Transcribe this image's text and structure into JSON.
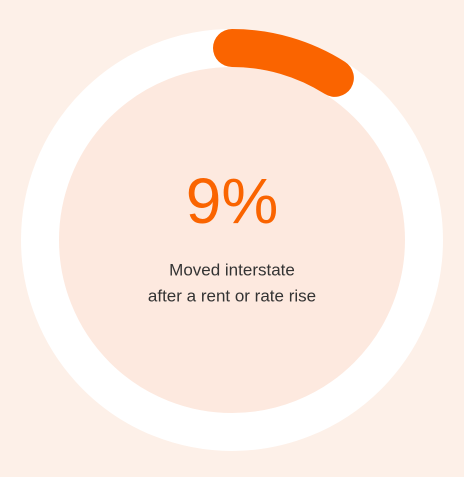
{
  "chart_data": {
    "type": "donut",
    "value": 9,
    "value_label": "9%",
    "max": 100,
    "color": "#fa6400",
    "caption": [
      "Moved interstate",
      "after a rent or rate rise"
    ]
  }
}
